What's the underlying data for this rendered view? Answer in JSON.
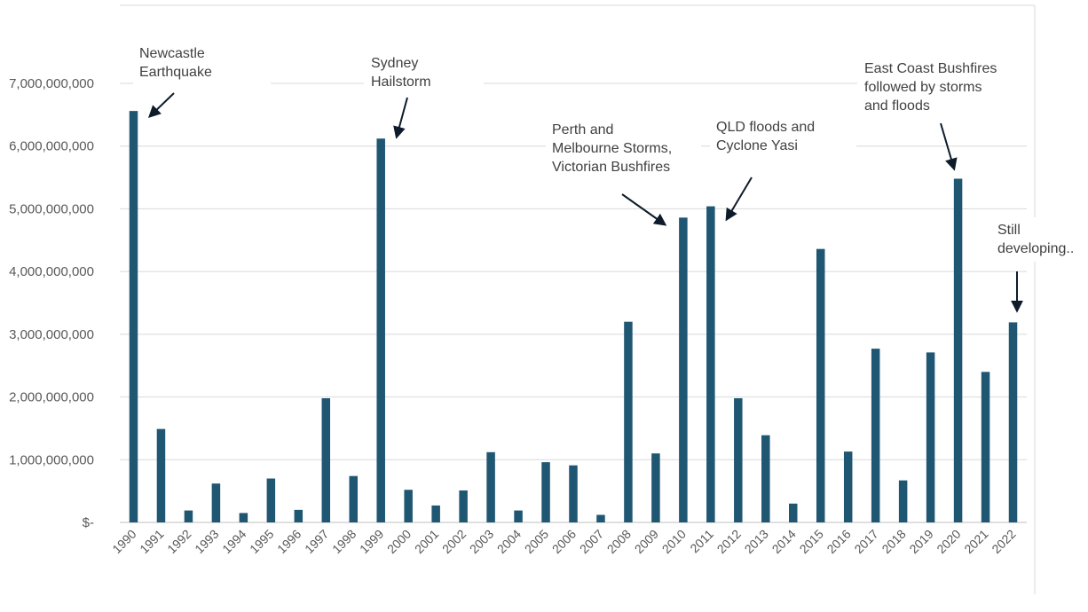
{
  "chart_data": {
    "type": "bar",
    "title_visible_fragment": "",
    "categories": [
      "1990",
      "1991",
      "1992",
      "1993",
      "1994",
      "1995",
      "1996",
      "1997",
      "1998",
      "1999",
      "2000",
      "2001",
      "2002",
      "2003",
      "2004",
      "2005",
      "2006",
      "2007",
      "2008",
      "2009",
      "2010",
      "2011",
      "2012",
      "2013",
      "2014",
      "2015",
      "2016",
      "2017",
      "2018",
      "2019",
      "2020",
      "2021",
      "2022"
    ],
    "values": [
      6560000000,
      1490000000,
      190000000,
      620000000,
      150000000,
      700000000,
      200000000,
      1980000000,
      740000000,
      6120000000,
      520000000,
      270000000,
      510000000,
      1120000000,
      190000000,
      960000000,
      910000000,
      120000000,
      3200000000,
      1100000000,
      4860000000,
      5040000000,
      1980000000,
      1390000000,
      300000000,
      4360000000,
      1130000000,
      2770000000,
      670000000,
      2710000000,
      5480000000,
      2400000000,
      3190000000
    ],
    "ylim": [
      0,
      7000000000
    ],
    "ytick_labels": [
      "$-",
      "1,000,000,000",
      "2,000,000,000",
      "3,000,000,000",
      "4,000,000,000",
      "5,000,000,000",
      "6,000,000,000",
      "7,000,000,000"
    ],
    "grid": true,
    "bar_color": "#1F5773",
    "annotations": [
      {
        "category": "1990",
        "lines": [
          "Newcastle",
          "Earthquake"
        ]
      },
      {
        "category": "1999",
        "lines": [
          "Sydney",
          "Hailstorm"
        ]
      },
      {
        "category": "2010",
        "lines": [
          "Perth and",
          "Melbourne Storms,",
          "Victorian Bushfires"
        ]
      },
      {
        "category": "2011",
        "lines": [
          "QLD floods and",
          "Cyclone Yasi"
        ]
      },
      {
        "category": "2020",
        "lines": [
          "East Coast Bushfires",
          "followed by storms",
          "and floods"
        ]
      },
      {
        "category": "2022",
        "lines": [
          "Still",
          "developing.."
        ]
      }
    ]
  }
}
